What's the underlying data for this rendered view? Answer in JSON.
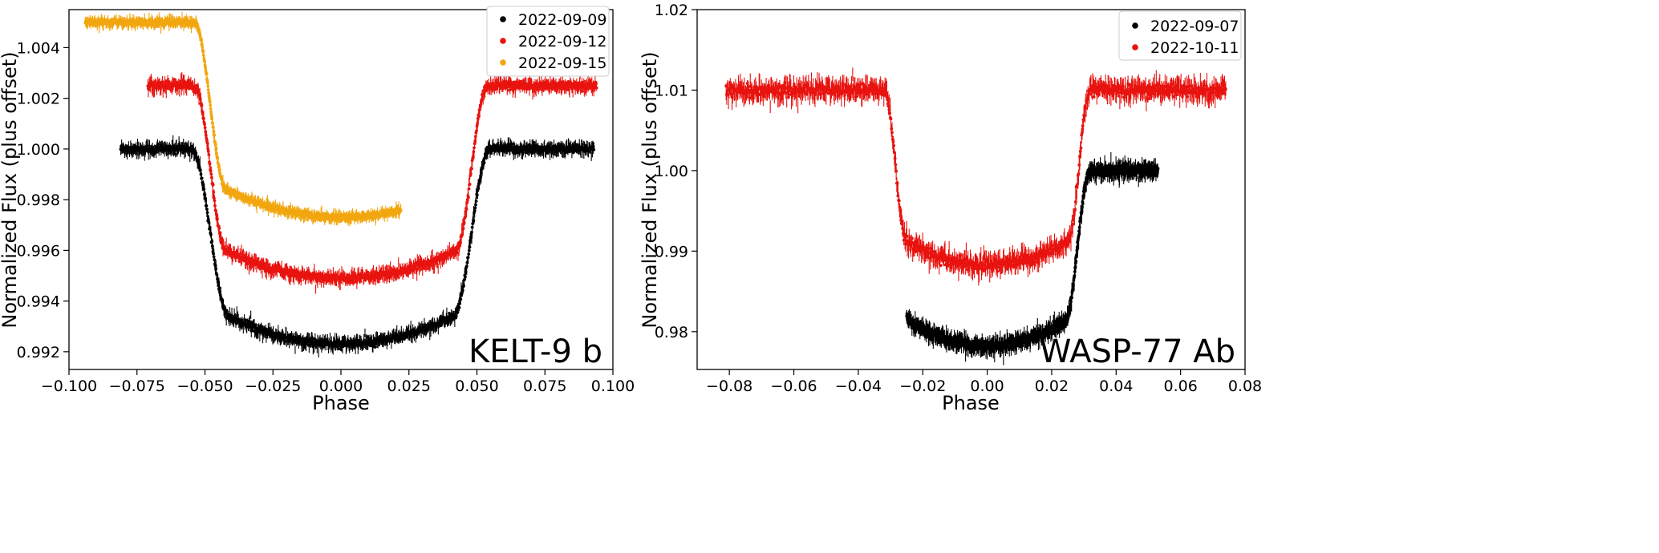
{
  "chart_data": [
    {
      "type": "scatter",
      "title": "",
      "panel_label": "KELT-9 b",
      "xlabel": "Phase",
      "ylabel": "Normalized Flux (plus offset)",
      "xlim": [
        -0.1,
        0.1
      ],
      "ylim": [
        0.9913,
        1.0055
      ],
      "xticks": [
        -0.1,
        -0.075,
        -0.05,
        -0.025,
        0.0,
        0.025,
        0.05,
        0.075,
        0.1
      ],
      "xtick_labels": [
        "−0.100",
        "−0.075",
        "−0.050",
        "−0.025",
        "0.000",
        "0.025",
        "0.050",
        "0.075",
        "0.100"
      ],
      "yticks": [
        0.992,
        0.994,
        0.996,
        0.998,
        1.0,
        1.002,
        1.004
      ],
      "ytick_labels": [
        "0.992",
        "0.994",
        "0.996",
        "0.998",
        "1.000",
        "1.002",
        "1.004"
      ],
      "legend_position": "top-right",
      "series": [
        {
          "name": "2022-09-09",
          "color": "#000000",
          "x_range": [
            -0.081,
            0.093
          ],
          "baseline": 1.0,
          "depth": 0.0077,
          "t1": 0.055,
          "t2": 0.041,
          "noise": 0.00012
        },
        {
          "name": "2022-09-12",
          "color": "#e8130f",
          "x_range": [
            -0.071,
            0.094
          ],
          "baseline": 1.0025,
          "depth": 0.0076,
          "t1": 0.054,
          "t2": 0.042,
          "noise": 0.00012
        },
        {
          "name": "2022-09-15",
          "color": "#f2a60f",
          "x_range": [
            -0.094,
            0.022
          ],
          "baseline": 1.005,
          "depth": 0.0077,
          "t1": 0.054,
          "t2": 0.042,
          "noise": 9e-05
        }
      ]
    },
    {
      "type": "scatter",
      "title": "",
      "panel_label": "WASP-77 Ab",
      "xlabel": "Phase",
      "ylabel": "Normalized Flux (plus offset)",
      "xlim": [
        -0.09,
        0.08
      ],
      "ylim": [
        0.9753,
        1.02
      ],
      "xticks": [
        -0.08,
        -0.06,
        -0.04,
        -0.02,
        0.0,
        0.02,
        0.04,
        0.06,
        0.08
      ],
      "xtick_labels": [
        "−0.08",
        "−0.06",
        "−0.04",
        "−0.02",
        "0.00",
        "0.02",
        "0.04",
        "0.06",
        "0.08"
      ],
      "yticks": [
        0.98,
        0.99,
        1.0,
        1.01,
        1.02
      ],
      "ytick_labels": [
        "0.98",
        "0.99",
        "1.00",
        "1.01",
        "1.02"
      ],
      "legend_position": "top-right",
      "series": [
        {
          "name": "2022-09-07",
          "color": "#000000",
          "x_range": [
            -0.025,
            0.053
          ],
          "baseline": 1.0,
          "depth": 0.0218,
          "t1": 0.032,
          "t2": 0.024,
          "noise": 0.00045
        },
        {
          "name": "2022-10-11",
          "color": "#e8130f",
          "x_range": [
            -0.081,
            0.074
          ],
          "baseline": 1.01,
          "depth": 0.0218,
          "t1": 0.032,
          "t2": 0.025,
          "noise": 0.0006
        }
      ]
    }
  ]
}
